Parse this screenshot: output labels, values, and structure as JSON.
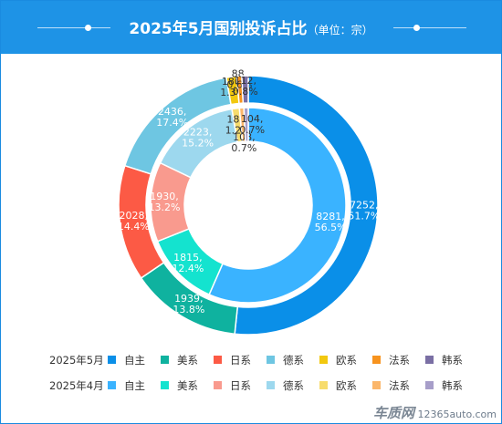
{
  "header": {
    "title": "2025年5月国别投诉占比",
    "unit": "（单位：宗）"
  },
  "chart_data": {
    "type": "pie",
    "title": "2025年5月国别投诉占比",
    "subtitle": "（单位：宗）",
    "categories": [
      "自主",
      "美系",
      "日系",
      "德系",
      "欧系",
      "法系",
      "韩系"
    ],
    "series": [
      {
        "name": "2025年5月",
        "ring": "outer",
        "values": [
          7252,
          1939,
          2028,
          2436,
          180,
          88,
          112
        ],
        "labels": [
          "7252,\n51.7%",
          "1939,\n13.8%",
          "2028,\n14.4%",
          "2436,\n17.4%",
          "180,\n1.3%",
          "88,\n0.6%",
          "112,\n0.8%"
        ],
        "colors": [
          "#0a8fe8",
          "#0fb29f",
          "#fc5a45",
          "#6ec6e2",
          "#f2c80f",
          "#f7931e",
          "#7a6fa4"
        ]
      },
      {
        "name": "2025年4月",
        "ring": "inner",
        "values": [
          8281,
          1815,
          1930,
          2223,
          181,
          108,
          104
        ],
        "labels": [
          "8281,\n56.5%",
          "1815,\n12.4%",
          "1930,\n13.2%",
          "2223,\n15.2%",
          "181,\n1.2%",
          "108,\n0.7%",
          "104,\n0.7%"
        ],
        "colors": [
          "#3ab3ff",
          "#14e3cf",
          "#f99a8e",
          "#9dd8ee",
          "#f7dc6d",
          "#fbb66a",
          "#a79ec9"
        ]
      }
    ],
    "legend_position": "bottom"
  },
  "watermark": {
    "brand": "车质网",
    "site": "12365auto.com"
  }
}
